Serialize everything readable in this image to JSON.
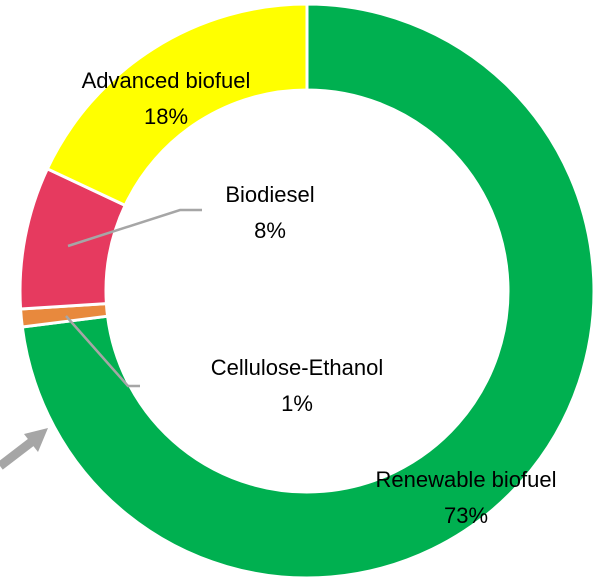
{
  "chart_data": {
    "type": "donut",
    "categories": [
      "Renewable biofuel",
      "Cellulose-Ethanol",
      "Biodiesel",
      "Advanced biofuel"
    ],
    "values": [
      73,
      1,
      8,
      18
    ],
    "value_labels": [
      "73%",
      "1%",
      "8%",
      "18%"
    ],
    "colors": [
      "#00b050",
      "#e8893d",
      "#e63a5f",
      "#ffff00"
    ]
  }
}
